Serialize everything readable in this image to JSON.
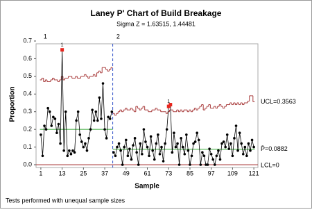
{
  "chart_data": {
    "type": "p-chart",
    "title": "Laney P' Chart of Build Breakage",
    "subtitle": "Sigma Z = 1.63515, 1.44481",
    "x_label": "Sample",
    "y_label": "Proportion",
    "footnote": "Tests performed with unequal sample sizes",
    "x": [
      1,
      2,
      3,
      4,
      5,
      6,
      7,
      8,
      9,
      10,
      11,
      12,
      13,
      14,
      15,
      16,
      17,
      18,
      19,
      20,
      21,
      22,
      23,
      24,
      25,
      26,
      27,
      28,
      29,
      30,
      31,
      32,
      33,
      34,
      35,
      36,
      37,
      38,
      39,
      40,
      41,
      42,
      43,
      44,
      45,
      46,
      47,
      48,
      49,
      50,
      51,
      52,
      53,
      54,
      55,
      56,
      57,
      58,
      59,
      60,
      61,
      62,
      63,
      64,
      65,
      66,
      67,
      68,
      69,
      70,
      71,
      72,
      73,
      74,
      75,
      76,
      77,
      78,
      79,
      80,
      81,
      82,
      83,
      84,
      85,
      86,
      87,
      88,
      89,
      90,
      91,
      92,
      93,
      94,
      95,
      96,
      97,
      98,
      99,
      100,
      101,
      102,
      103,
      104,
      105,
      106,
      107,
      108,
      109,
      110,
      111,
      112,
      113,
      114,
      115,
      116,
      117,
      118,
      119,
      120,
      121
    ],
    "values": [
      0.17,
      0.05,
      0.22,
      0.2,
      0.32,
      0.3,
      0.22,
      0.27,
      0.26,
      0.18,
      0.23,
      0.12,
      0.65,
      0.08,
      0.3,
      0.05,
      0.08,
      0.06,
      0.08,
      0.07,
      0.25,
      0.3,
      0.17,
      0.13,
      0.1,
      0.12,
      0.08,
      0.15,
      0.2,
      0.31,
      0.25,
      0.3,
      0.25,
      0.38,
      0.26,
      0.46,
      0.2,
      0.15,
      0.27,
      0.26,
      0.3,
      0.07,
      0.05,
      0.1,
      0.12,
      0.08,
      0.0,
      0.1,
      0.14,
      0.05,
      0.09,
      0.03,
      0.11,
      0.15,
      0.07,
      0.0,
      0.12,
      0.06,
      0.2,
      0.13,
      0.1,
      0.05,
      0.16,
      0.08,
      0.03,
      0.12,
      0.17,
      0.06,
      0.1,
      0.02,
      0.12,
      0.2,
      0.33,
      0.34,
      0.07,
      0.18,
      0.1,
      0.12,
      0.0,
      0.15,
      0.1,
      0.06,
      0.17,
      0.08,
      0.0,
      0.05,
      0.12,
      0.13,
      0.18,
      0.14,
      0.0,
      0.07,
      0.05,
      0.0,
      0.0,
      0.09,
      0.06,
      0.03,
      0.0,
      0.05,
      0.08,
      0.03,
      0.12,
      0.13,
      0.1,
      0.17,
      0.09,
      0.12,
      0.05,
      0.15,
      0.22,
      0.08,
      0.18,
      0.12,
      0.06,
      0.1,
      0.05,
      0.12,
      0.08,
      0.14,
      0.1
    ],
    "ucl": [
      0.48,
      0.49,
      0.47,
      0.48,
      0.47,
      0.47,
      0.48,
      0.49,
      0.48,
      0.48,
      0.47,
      0.48,
      0.5,
      0.48,
      0.49,
      0.49,
      0.5,
      0.5,
      0.49,
      0.49,
      0.5,
      0.49,
      0.49,
      0.5,
      0.5,
      0.51,
      0.5,
      0.49,
      0.5,
      0.5,
      0.51,
      0.5,
      0.52,
      0.53,
      0.52,
      0.55,
      0.55,
      0.54,
      0.53,
      0.54,
      0.55,
      0.29,
      0.28,
      0.29,
      0.3,
      0.31,
      0.3,
      0.31,
      0.32,
      0.31,
      0.31,
      0.32,
      0.31,
      0.3,
      0.33,
      0.32,
      0.31,
      0.32,
      0.33,
      0.31,
      0.31,
      0.3,
      0.3,
      0.31,
      0.31,
      0.32,
      0.31,
      0.31,
      0.3,
      0.3,
      0.3,
      0.29,
      0.3,
      0.31,
      0.31,
      0.3,
      0.3,
      0.31,
      0.3,
      0.31,
      0.3,
      0.31,
      0.31,
      0.3,
      0.31,
      0.3,
      0.31,
      0.32,
      0.31,
      0.32,
      0.33,
      0.34,
      0.31,
      0.32,
      0.33,
      0.34,
      0.32,
      0.32,
      0.33,
      0.32,
      0.33,
      0.34,
      0.33,
      0.32,
      0.33,
      0.34,
      0.34,
      0.35,
      0.34,
      0.35,
      0.34,
      0.35,
      0.34,
      0.35,
      0.34,
      0.35,
      0.35,
      0.36,
      0.39,
      0.39,
      0.3563
    ],
    "ucl_label": "UCL=0.3563",
    "center": [
      {
        "start": 1,
        "end": 41,
        "value": 0.2
      },
      {
        "start": 42,
        "end": 121,
        "value": 0.0882
      }
    ],
    "center_label": "P̄=0.0882",
    "lcl": 0,
    "lcl_label": "LCL=0",
    "stages": [
      {
        "label": "1",
        "start": 1
      },
      {
        "label": "2",
        "start": 42
      }
    ],
    "flagged": [
      {
        "index": 12,
        "label": "1"
      },
      {
        "index": 72,
        "label": "1"
      },
      {
        "index": 73
      }
    ],
    "color": "#000000",
    "flag_color": "#e8261e",
    "ucl_color": "#a83a3a",
    "center_color": "#2ea52e",
    "lcl_color": "#a83a3a",
    "stage_color": "#3050c8",
    "xlim": [
      -1.7,
      123.3
    ],
    "ylim": [
      0,
      0.7
    ],
    "xticks": [
      1,
      13,
      25,
      37,
      49,
      61,
      73,
      85,
      97,
      109,
      121
    ],
    "yticks": [
      {
        "value": 0,
        "label": "0.0"
      },
      0.1,
      0.2,
      0.3,
      0.4,
      0.5,
      0.6,
      0.7
    ]
  }
}
